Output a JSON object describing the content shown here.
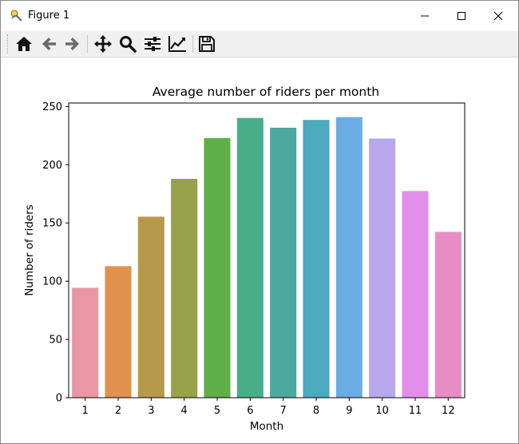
{
  "window": {
    "title": "Figure 1",
    "controls": {
      "minimize_icon": "minimize-icon",
      "maximize_icon": "maximize-icon",
      "close_icon": "close-icon"
    }
  },
  "toolbar": {
    "buttons": [
      {
        "name": "home",
        "icon": "home-icon"
      },
      {
        "name": "back",
        "icon": "arrow-left-icon"
      },
      {
        "name": "forward",
        "icon": "arrow-right-icon"
      },
      {
        "name": "pan",
        "icon": "move-icon"
      },
      {
        "name": "zoom",
        "icon": "magnifier-icon"
      },
      {
        "name": "subplots",
        "icon": "sliders-icon"
      },
      {
        "name": "axes",
        "icon": "line-chart-icon"
      },
      {
        "name": "save",
        "icon": "floppy-disk-icon"
      }
    ]
  },
  "chart_data": {
    "type": "bar",
    "title": "Average number of riders per month",
    "xlabel": "Month",
    "ylabel": "Number of riders",
    "categories": [
      "1",
      "2",
      "3",
      "4",
      "5",
      "6",
      "7",
      "8",
      "9",
      "10",
      "11",
      "12"
    ],
    "values": [
      94.4,
      112.9,
      155.4,
      187.9,
      222.9,
      240.2,
      231.8,
      238.5,
      240.9,
      222.5,
      177.4,
      142.4
    ],
    "ylim": [
      0,
      253
    ],
    "yticks": [
      0,
      50,
      100,
      150,
      200,
      250
    ],
    "grid": false,
    "colors": [
      "#ea96a3",
      "#e1924f",
      "#b7994b",
      "#98a24a",
      "#5fae47",
      "#48ae89",
      "#4aaaa1",
      "#4da9bd",
      "#6bace3",
      "#b8a7ec",
      "#e18ee9",
      "#e88cc4"
    ]
  }
}
